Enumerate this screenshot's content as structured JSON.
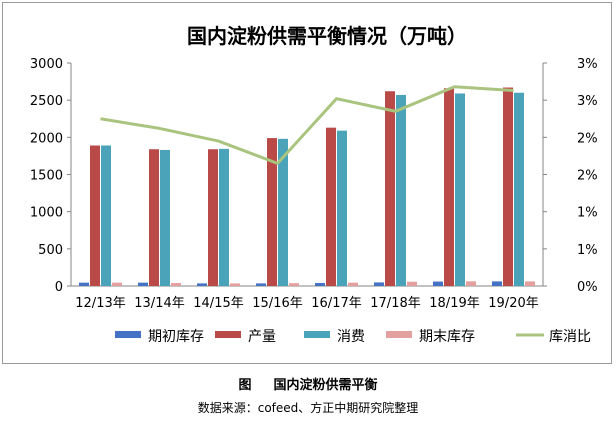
{
  "chart_data": {
    "type": "bar",
    "title": "国内淀粉供需平衡情况（万吨）",
    "categories": [
      "12/13年",
      "13/14年",
      "14/15年",
      "15/16年",
      "16/17年",
      "17/18年",
      "18/19年",
      "19/20年"
    ],
    "series": [
      {
        "name": "期初库存",
        "axis": "left",
        "type": "bar",
        "color": "#4472c4",
        "values": [
          45,
          45,
          35,
          35,
          40,
          48,
          60,
          62
        ]
      },
      {
        "name": "产量",
        "axis": "left",
        "type": "bar",
        "color": "#b94a48",
        "values": [
          1890,
          1840,
          1840,
          1990,
          2130,
          2620,
          2660,
          2670
        ]
      },
      {
        "name": "消费",
        "axis": "left",
        "type": "bar",
        "color": "#4aa3b8",
        "values": [
          1890,
          1830,
          1845,
          1980,
          2090,
          2570,
          2590,
          2600
        ]
      },
      {
        "name": "期末库存",
        "axis": "left",
        "type": "bar",
        "color": "#e3a09e",
        "values": [
          45,
          40,
          35,
          38,
          45,
          58,
          63,
          62
        ]
      },
      {
        "name": "库消比",
        "axis": "right",
        "type": "line",
        "color": "#a9c47f",
        "values": [
          0.0225,
          0.0212,
          0.0195,
          0.0165,
          0.0252,
          0.0235,
          0.0268,
          0.0263
        ]
      }
    ],
    "y_left": {
      "min": 0,
      "max": 3000,
      "ticks": [
        0,
        500,
        1000,
        1500,
        2000,
        2500,
        3000
      ]
    },
    "y_right": {
      "min": 0,
      "max": 0.03,
      "ticks": [
        0,
        0.005,
        0.01,
        0.015,
        0.02,
        0.025,
        0.03
      ],
      "tick_labels": [
        "0%",
        "1%",
        "1%",
        "2%",
        "2%",
        "3%",
        "3%"
      ]
    },
    "grid": false,
    "legend_position": "bottom"
  },
  "caption": {
    "figure_label": "图",
    "title": "国内淀粉供需平衡"
  },
  "source": "数据来源：cofeed、方正中期研究院整理"
}
